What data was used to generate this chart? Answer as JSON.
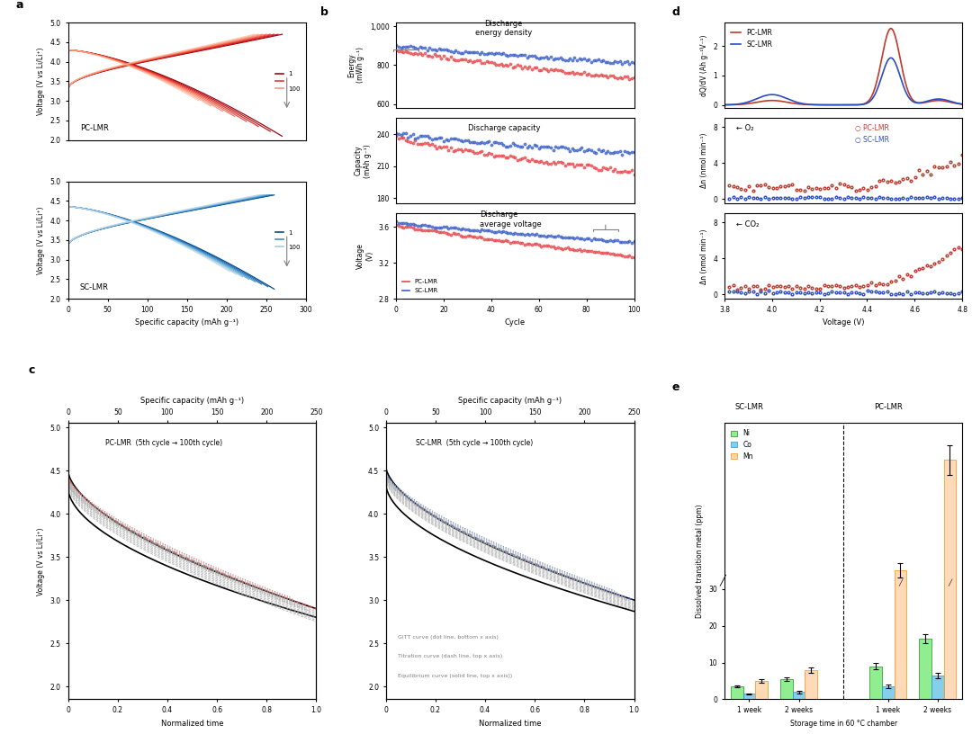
{
  "panel_a_title_top": "PC-LMR",
  "panel_a_title_bot": "SC-LMR",
  "panel_b_labels": [
    "Discharge\nenergy density",
    "Discharge capacity",
    "Discharge\naverage voltage"
  ],
  "panel_b_ylabel_top": "Energy\n(mWh g⁻¹)",
  "panel_b_ylabel_mid": "Capacity\n(mAh g⁻¹)",
  "panel_b_ylabel_bot": "Voltage\n(V)",
  "panel_b_xlabel": "Cycle",
  "panel_c_title_left": "PC-LMR  (5th cycle → 100th cycle)",
  "panel_c_title_right": "SC-LMR  (5th cycle → 100th cycle)",
  "panel_c_xlabel": "Normalized time",
  "panel_c_ylabel": "Voltage (V vs Li/Li⁺)",
  "panel_c_top_xlabel": "Specific capacity (mAh g⁻¹)",
  "panel_d_ylabel_top": "dQ/dV (Ah g⁻¹V⁻¹)",
  "panel_d_ylabel_mid": "Δn (nmol min⁻¹)",
  "panel_d_xlabel": "Voltage (V)",
  "panel_e_xlabel": "Storage time in 60 °C chamber",
  "panel_e_ylabel": "Dissolved transition metal (ppm)",
  "bg_color": "#ffffff",
  "red_color": "#e8474c",
  "blue_color": "#3a5fc8",
  "dark_red": "#8b1a1a",
  "dark_blue": "#1a1a6e"
}
